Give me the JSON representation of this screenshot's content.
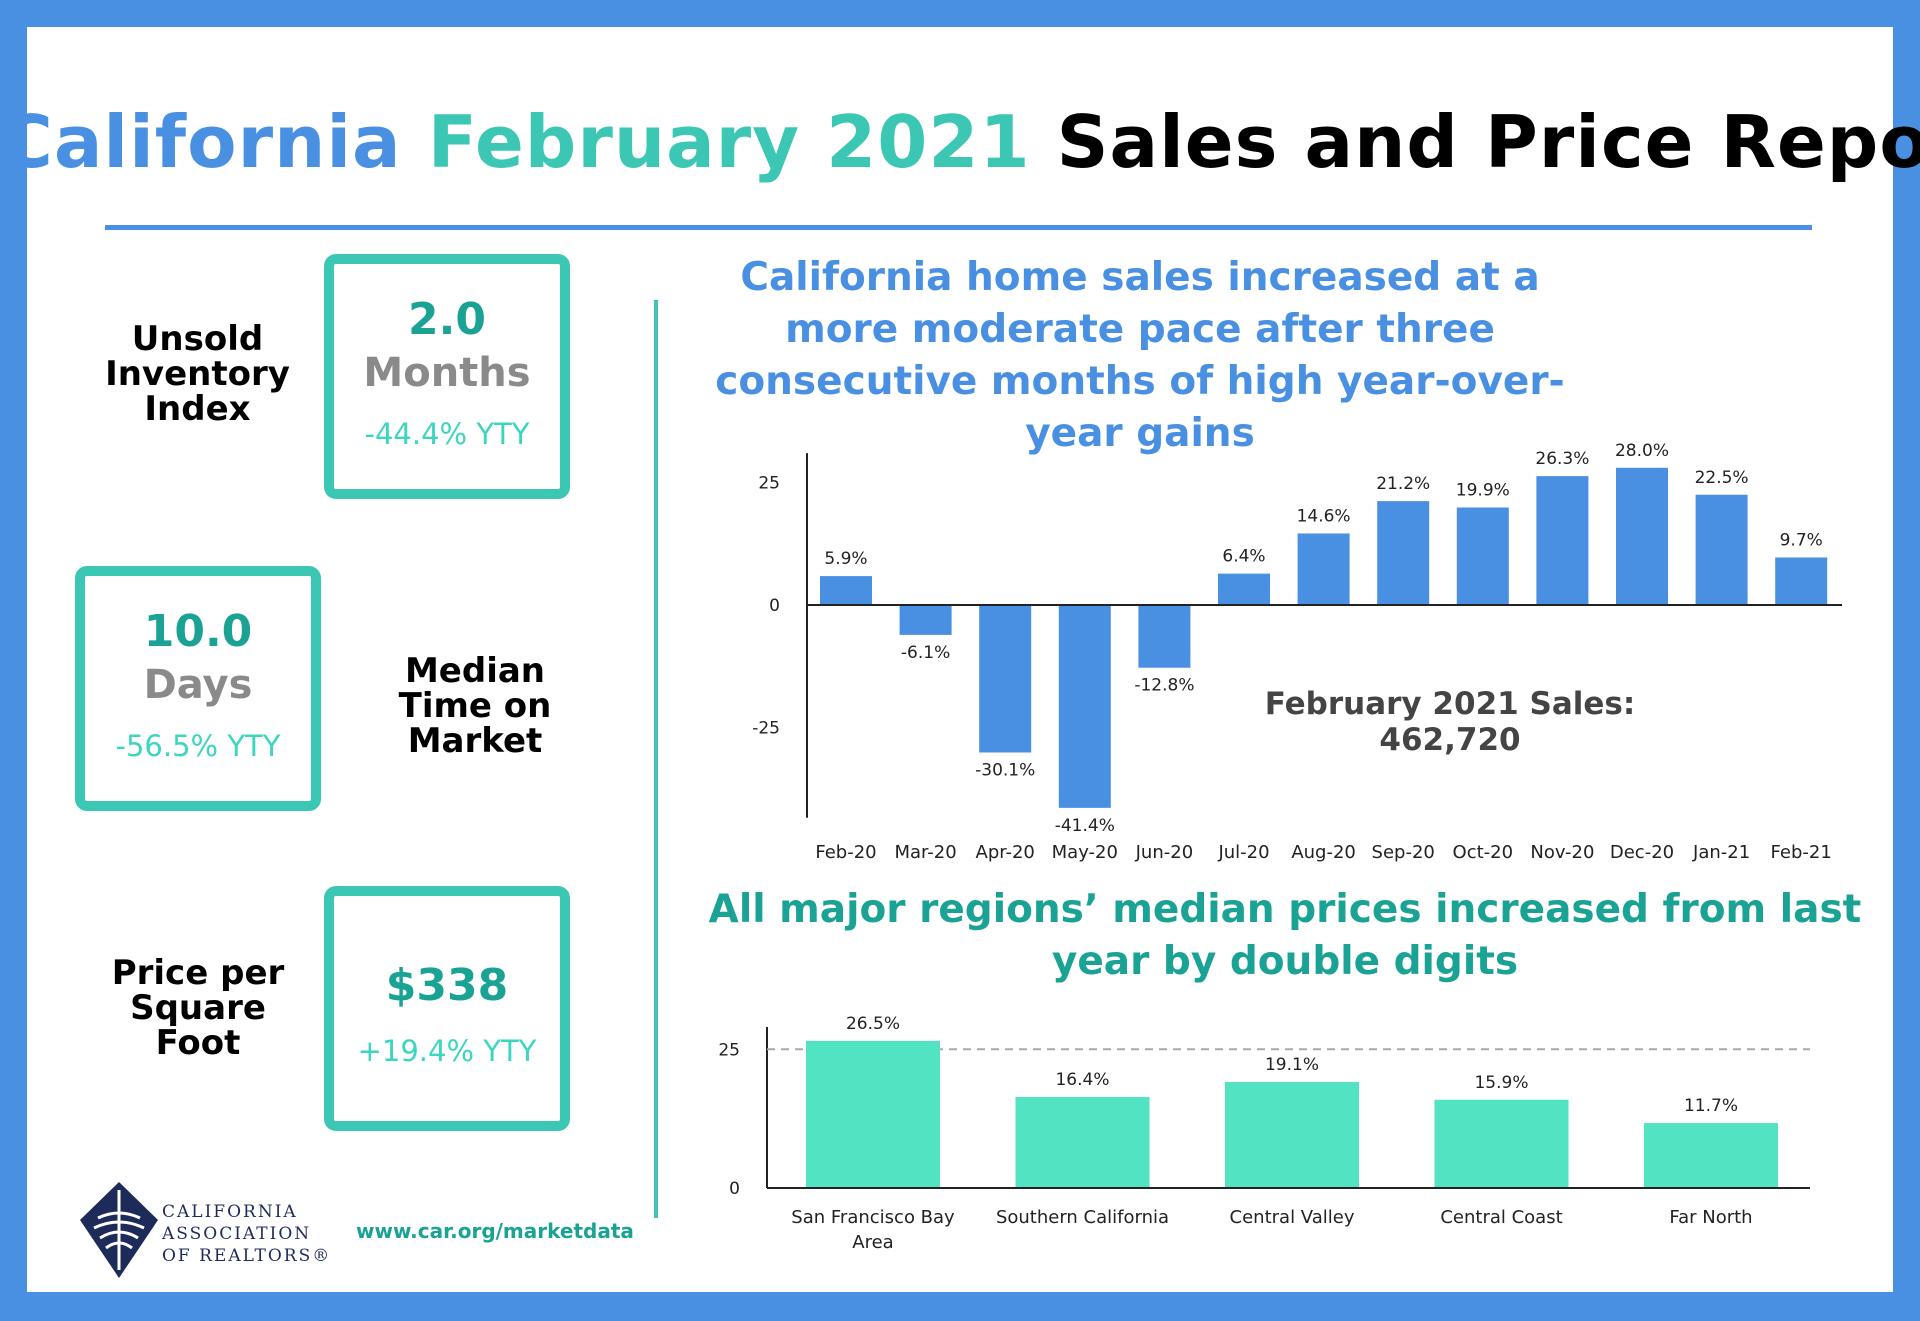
{
  "title": {
    "part1": "California",
    "part2": "February 2021",
    "part3": "Sales and Price Report"
  },
  "kpis": {
    "inventory": {
      "label": "Unsold Inventory Index",
      "value": "2.0",
      "unit": "Months",
      "change": "-44.4% YTY"
    },
    "time_on_market": {
      "label": "Median Time on Market",
      "value": "10.0",
      "unit": "Days",
      "change": "-56.5% YTY"
    },
    "price_sqft": {
      "label": "Price per Square Foot",
      "value": "$338",
      "change": "+19.4% YTY"
    }
  },
  "footer": {
    "org_line1": "CALIFORNIA",
    "org_line2": "ASSOCIATION",
    "org_line3": "OF REALTORS®",
    "website": "www.car.org/marketdata"
  },
  "sales_total": "February 2021 Sales: 462,720",
  "colors": {
    "blue": "#4a90e2",
    "teal": "#3cc7b4",
    "mint": "#52e3c2"
  },
  "chart_data": [
    {
      "type": "bar",
      "title": "California home sales increased at a more moderate pace after three consecutive months of high year-over-year gains",
      "categories": [
        "Feb-20",
        "Mar-20",
        "Apr-20",
        "May-20",
        "Jun-20",
        "Jul-20",
        "Aug-20",
        "Sep-20",
        "Oct-20",
        "Nov-20",
        "Dec-20",
        "Jan-21",
        "Feb-21"
      ],
      "values": [
        5.9,
        -6.1,
        -30.1,
        -41.4,
        -12.8,
        6.4,
        14.6,
        21.2,
        19.9,
        26.3,
        28.0,
        22.5,
        9.7
      ],
      "data_labels": [
        "5.9%",
        "-6.1%",
        "-30.1%",
        "-41.4%",
        "-12.8%",
        "6.4%",
        "14.6%",
        "21.2%",
        "19.9%",
        "26.3%",
        "28.0%",
        "22.5%",
        "9.7%"
      ],
      "yticks": [
        25,
        0,
        -25
      ],
      "ylim": [
        -43,
        31
      ],
      "grid": false,
      "color": "#4a90e2"
    },
    {
      "type": "bar",
      "title": "All major regions’ median prices increased from last year by double digits",
      "categories": [
        [
          "San Francisco Bay",
          "Area"
        ],
        [
          "Southern California"
        ],
        [
          "Central Valley"
        ],
        [
          "Central Coast"
        ],
        [
          "Far North"
        ]
      ],
      "values": [
        26.5,
        16.4,
        19.1,
        15.9,
        11.7
      ],
      "data_labels": [
        "26.5%",
        "16.4%",
        "19.1%",
        "15.9%",
        "11.7%"
      ],
      "yticks": [
        25,
        0
      ],
      "ylim": [
        0,
        29
      ],
      "reference_line": 25,
      "grid": false,
      "color": "#52e3c2"
    }
  ]
}
